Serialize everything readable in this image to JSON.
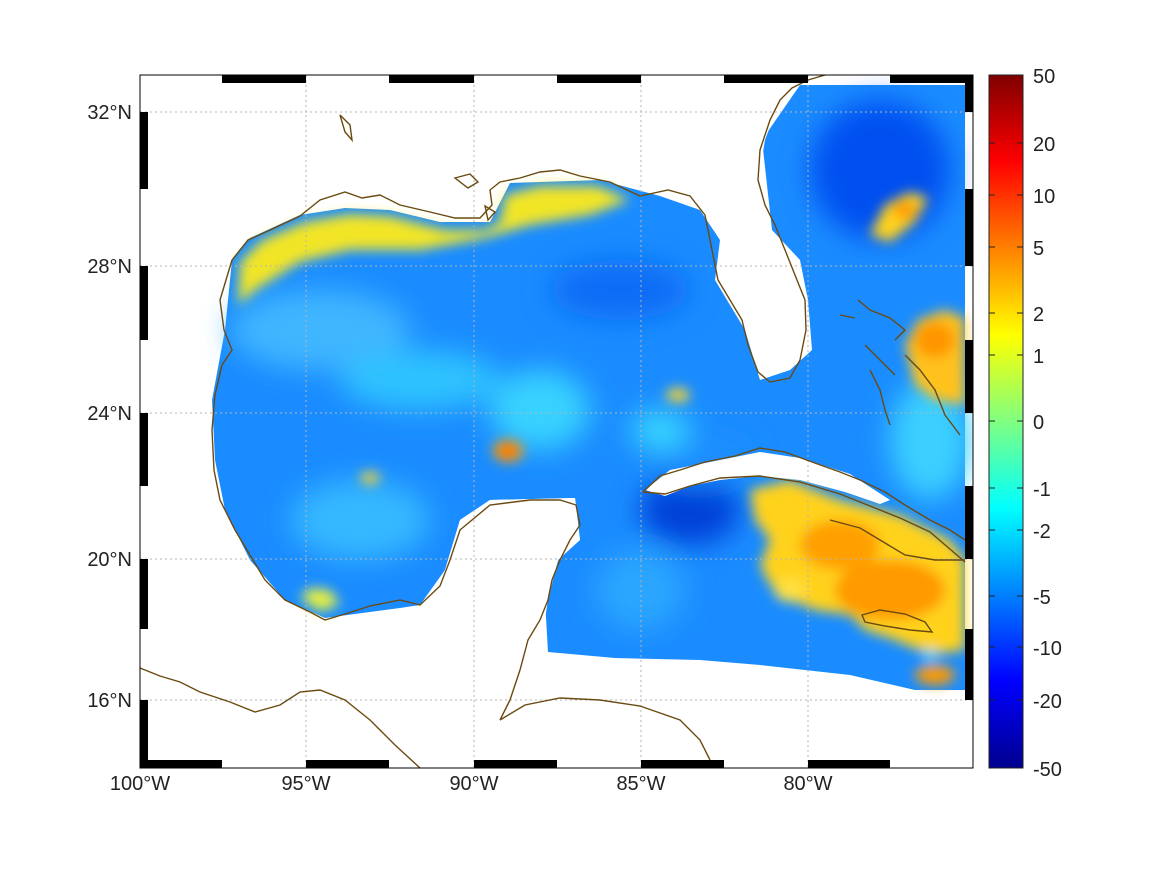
{
  "map": {
    "lon_ticks": [
      "100°W",
      "95°W",
      "90°W",
      "85°W",
      "80°W"
    ],
    "lat_ticks": [
      "32°N",
      "28°N",
      "24°N",
      "20°N",
      "16°N"
    ],
    "lon_range": [
      -100,
      -75.3
    ],
    "lat_range": [
      14.3,
      33.0
    ],
    "grid": "dotted",
    "frame": "black-white checkered border",
    "coastline_color": "#6b4a12",
    "land_color": "#ffffff"
  },
  "colorbar": {
    "labels": [
      "50",
      "20",
      "10",
      "5",
      "2",
      "1",
      "0",
      "-1",
      "-2",
      "-5",
      "-10",
      "-20",
      "-50"
    ],
    "colormap": "jet",
    "colors": [
      "#7f0000",
      "#ff0000",
      "#ff8000",
      "#ffff00",
      "#80ff80",
      "#00ffff",
      "#0080ff",
      "#0000ff",
      "#00008f"
    ]
  },
  "field_features": {
    "background_level": "-5",
    "highs": [
      "northern Gulf coast",
      "off Georgia",
      "western Bahamas",
      "south of Cuba / around Jamaica",
      "central Gulf spot"
    ]
  }
}
